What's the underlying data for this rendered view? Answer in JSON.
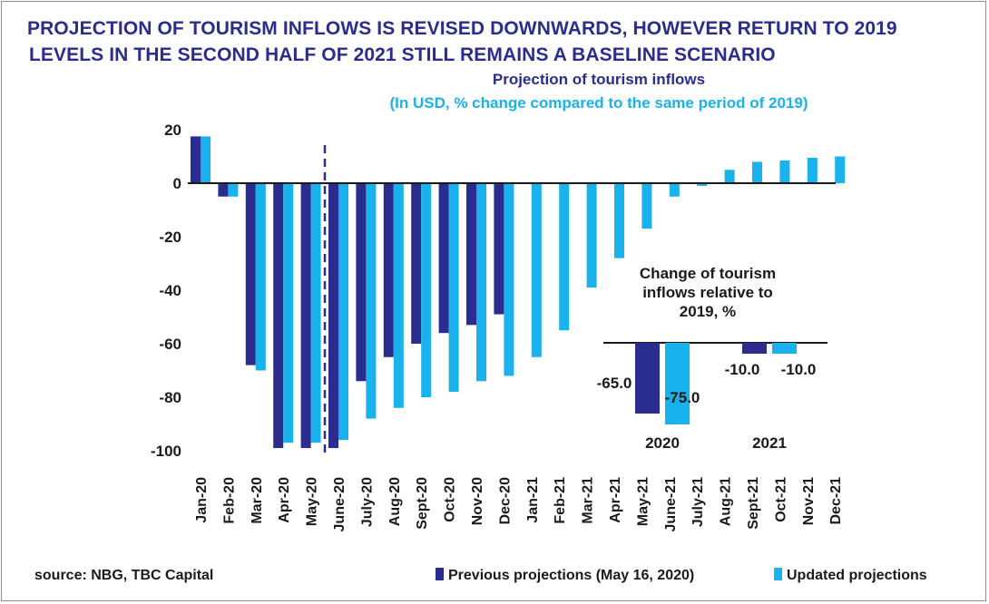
{
  "title_line1": "PROJECTION OF TOURISM INFLOWS IS REVISED DOWNWARDS, HOWEVER RETURN TO 2019",
  "title_line2": "LEVELS IN THE SECOND HALF OF 2021 STILL REMAINS A BASELINE SCENARIO",
  "source": "source: NBG, TBC Capital",
  "colors": {
    "previous": "#2b2d8e",
    "updated": "#19b2ec",
    "title": "#2b2d8e",
    "text": "#1a1a1a"
  },
  "chart_data": [
    {
      "type": "bar",
      "title": "Projection of tourism inflows",
      "subtitle": "(In USD, % change compared to the same period of 2019)",
      "categories": [
        "Jan-20",
        "Feb-20",
        "Mar-20",
        "Apr-20",
        "May-20",
        "June-20",
        "July-20",
        "Aug-20",
        "Sept-20",
        "Oct-20",
        "Nov-20",
        "Dec-20",
        "Jan-21",
        "Feb-21",
        "Mar-21",
        "Apr-21",
        "May-21",
        "June-21",
        "July-21",
        "Aug-21",
        "Sept-21",
        "Oct-21",
        "Nov-21",
        "Dec-21"
      ],
      "series": [
        {
          "name": "Previous projections (May 16, 2020)",
          "values": [
            17.5,
            -5,
            -68,
            -99,
            -99,
            -99,
            -74,
            -65,
            -60,
            -56,
            -53,
            -49,
            null,
            null,
            null,
            null,
            null,
            null,
            null,
            null,
            null,
            null,
            null,
            null
          ]
        },
        {
          "name": "Updated projections",
          "values": [
            17.5,
            -5,
            -70,
            -97,
            -97,
            -96,
            -88,
            -84,
            -80,
            -78,
            -74,
            -72,
            -65,
            -55,
            -39,
            -28,
            -17,
            -5,
            -1,
            5,
            8,
            8.5,
            9.5,
            10
          ]
        }
      ],
      "yticks": [
        20,
        0,
        -20,
        -40,
        -60,
        -80,
        -100
      ],
      "ylim": [
        -100,
        20
      ],
      "vertical_marker_after": "May-20",
      "grid": false
    },
    {
      "type": "bar",
      "title": "Change of tourism inflows relative to 2019, %",
      "categories": [
        "2020",
        "2021"
      ],
      "series": [
        {
          "name": "Previous projections (May 16, 2020)",
          "values": [
            -65.0,
            -10.0
          ]
        },
        {
          "name": "Updated projections",
          "values": [
            -75.0,
            -10.0
          ]
        }
      ],
      "value_labels": {
        "2020": [
          "-65.0",
          "-75.0"
        ],
        "2021": [
          "-10.0",
          "-10.0"
        ]
      }
    }
  ]
}
